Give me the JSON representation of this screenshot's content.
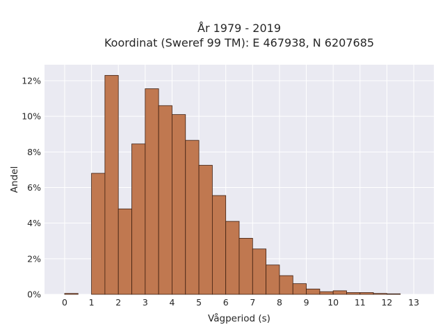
{
  "chart_data": {
    "type": "bar",
    "title": [
      "År 1979 - 2019",
      "Koordinat (Sweref 99 TM): E 467938, N 6207685"
    ],
    "xlabel": "Vågperiod (s)",
    "ylabel": "Andel",
    "xlim": [
      -0.75,
      13.75
    ],
    "ylim": [
      0,
      12.9
    ],
    "xticks": [
      0,
      1,
      2,
      3,
      4,
      5,
      6,
      7,
      8,
      9,
      10,
      11,
      12,
      13
    ],
    "yticks": [
      0,
      2,
      4,
      6,
      8,
      10,
      12
    ],
    "ytick_format": "{}%",
    "bin_width": 0.5,
    "bin_starts": [
      0,
      0.5,
      1,
      1.5,
      2,
      2.5,
      3,
      3.5,
      4,
      4.5,
      5,
      5.5,
      6,
      6.5,
      7,
      7.5,
      8,
      8.5,
      9,
      9.5,
      10,
      10.5,
      11,
      11.5,
      12,
      12.5
    ],
    "values": [
      0.05,
      0.0,
      6.8,
      12.3,
      4.8,
      8.45,
      11.55,
      10.6,
      10.1,
      8.65,
      7.25,
      5.55,
      4.1,
      3.15,
      2.55,
      1.65,
      1.05,
      0.6,
      0.3,
      0.15,
      0.2,
      0.1,
      0.1,
      0.05,
      0.03,
      0.0
    ],
    "grid": true,
    "colors": {
      "background": "#eaeaf2",
      "bar_fill": "#c07850",
      "bar_edge": "#3d1e10",
      "grid": "#ffffff"
    }
  }
}
